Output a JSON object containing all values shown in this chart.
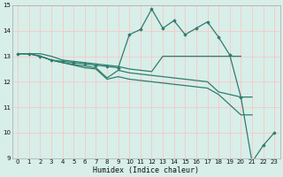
{
  "title": "",
  "xlabel": "Humidex (Indice chaleur)",
  "ylabel": "",
  "xlim": [
    -0.5,
    23.5
  ],
  "ylim": [
    9,
    15
  ],
  "yticks": [
    9,
    10,
    11,
    12,
    13,
    14,
    15
  ],
  "xticks": [
    0,
    1,
    2,
    3,
    4,
    5,
    6,
    7,
    8,
    9,
    10,
    11,
    12,
    13,
    14,
    15,
    16,
    17,
    18,
    19,
    20,
    21,
    22,
    23
  ],
  "background_color": "#d8eee8",
  "grid_color": "#f5c8c8",
  "line_color": "#2e7d6e",
  "lines": [
    {
      "x": [
        0,
        1,
        2,
        3,
        4,
        5,
        6,
        7,
        8,
        9,
        10,
        11,
        12,
        13,
        14,
        15,
        16,
        17,
        18,
        19,
        20
      ],
      "y": [
        13.1,
        13.1,
        13.1,
        13.0,
        12.85,
        12.8,
        12.75,
        12.7,
        12.65,
        12.6,
        12.5,
        12.45,
        12.4,
        13.0,
        13.0,
        13.0,
        13.0,
        13.0,
        13.0,
        13.0,
        13.0
      ],
      "marker": false
    },
    {
      "x": [
        0,
        1,
        2,
        3,
        4,
        5,
        6,
        7,
        8,
        9,
        10,
        11,
        12,
        13,
        14,
        15,
        16,
        17,
        18,
        19,
        20,
        21,
        22,
        23
      ],
      "y": [
        13.1,
        13.1,
        13.0,
        12.85,
        12.8,
        12.75,
        12.7,
        12.65,
        12.6,
        12.55,
        13.85,
        14.05,
        14.85,
        14.1,
        14.4,
        13.85,
        14.1,
        14.35,
        13.75,
        13.05,
        11.4,
        8.85,
        9.5,
        10.0
      ],
      "marker": true
    },
    {
      "x": [
        0,
        1,
        2,
        3,
        4,
        5,
        6,
        7,
        8,
        9,
        10,
        11,
        12,
        13,
        14,
        15,
        16,
        17,
        18,
        19,
        20,
        21
      ],
      "y": [
        13.1,
        13.1,
        13.0,
        12.85,
        12.75,
        12.68,
        12.62,
        12.55,
        12.15,
        12.45,
        12.35,
        12.3,
        12.25,
        12.2,
        12.15,
        12.1,
        12.05,
        12.0,
        11.6,
        11.5,
        11.4,
        11.4
      ],
      "marker": false
    },
    {
      "x": [
        0,
        1,
        2,
        3,
        4,
        5,
        6,
        7,
        8,
        9,
        10,
        11,
        12,
        13,
        14,
        15,
        16,
        17,
        18,
        19,
        20,
        21
      ],
      "y": [
        13.1,
        13.1,
        13.0,
        12.85,
        12.75,
        12.65,
        12.55,
        12.5,
        12.1,
        12.2,
        12.1,
        12.05,
        12.0,
        11.95,
        11.9,
        11.85,
        11.8,
        11.75,
        11.5,
        11.1,
        10.7,
        10.7
      ],
      "marker": false
    }
  ]
}
